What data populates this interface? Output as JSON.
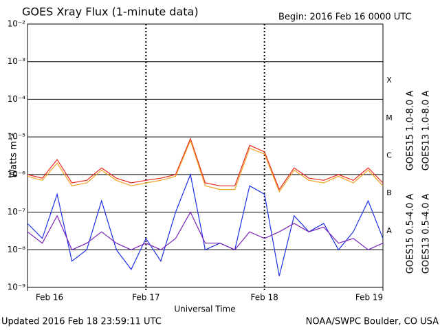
{
  "chart_data": {
    "type": "line",
    "title": "GOES Xray Flux (1-minute data)",
    "subtitle": "Begin:  2016 Feb 16 0000 UTC",
    "y_label": "Watts m⁻²",
    "x_label": "Universal Time",
    "footer_left": "Updated 2016 Feb 18 23:59:11 UTC",
    "footer_right": "NOAA/SWPC Boulder, CO USA",
    "log_y": true,
    "grid": true,
    "xlim": [
      0,
      3
    ],
    "xticks": [
      {
        "value": 0,
        "label": "Feb 16"
      },
      {
        "value": 1,
        "label": "Feb 17"
      },
      {
        "value": 2,
        "label": "Feb 18"
      },
      {
        "value": 3,
        "label": "Feb 19"
      }
    ],
    "ylim": [
      1e-09,
      0.01
    ],
    "yticks": [
      {
        "value": 0.01,
        "label": "10⁻²"
      },
      {
        "value": 0.001,
        "label": "10⁻³"
      },
      {
        "value": 0.0001,
        "label": "10⁻⁴"
      },
      {
        "value": 1e-05,
        "label": "10⁻⁵"
      },
      {
        "value": 1e-06,
        "label": "10⁻⁶"
      },
      {
        "value": 1e-07,
        "label": "10⁻⁷"
      },
      {
        "value": 1e-08,
        "label": "10⁻⁸"
      },
      {
        "value": 1e-09,
        "label": "10⁻⁹"
      }
    ],
    "flare_classes": [
      {
        "label": "X",
        "value": 0.0001
      },
      {
        "label": "M",
        "value": 1e-05
      },
      {
        "label": "C",
        "value": 1e-06
      },
      {
        "label": "B",
        "value": 1e-07
      },
      {
        "label": "A",
        "value": 1e-08
      }
    ],
    "x": [
      0,
      0.125,
      0.25,
      0.375,
      0.5,
      0.625,
      0.75,
      0.875,
      1,
      1.125,
      1.25,
      1.375,
      1.5,
      1.625,
      1.75,
      1.875,
      2,
      2.125,
      2.25,
      2.375,
      2.5,
      2.625,
      2.75,
      2.875,
      3
    ],
    "series": [
      {
        "name": "GOES15 1.0-8.0 A",
        "color": "#e8261c",
        "values": [
          1e-06,
          8e-07,
          2.5e-06,
          6e-07,
          7e-07,
          1.5e-06,
          8e-07,
          6e-07,
          7e-07,
          8e-07,
          1e-06,
          9e-06,
          6e-07,
          5e-07,
          5e-07,
          6e-06,
          4e-06,
          4e-07,
          1.5e-06,
          8e-07,
          7e-07,
          1e-06,
          7e-07,
          1.5e-06,
          6e-07
        ]
      },
      {
        "name": "GOES13 1.0-8.0 A",
        "color": "#f0a020",
        "values": [
          9e-07,
          7e-07,
          2e-06,
          5e-07,
          6e-07,
          1.3e-06,
          7e-07,
          5e-07,
          6e-07,
          7e-07,
          9e-07,
          8e-06,
          5e-07,
          4e-07,
          4e-07,
          5e-06,
          3.5e-06,
          3.5e-07,
          1.3e-06,
          7e-07,
          6e-07,
          9e-07,
          6e-07,
          1.3e-06,
          5e-07
        ]
      },
      {
        "name": "GOES15 0.5-4.0 A",
        "color": "#1c2ee8",
        "values": [
          5e-08,
          2e-08,
          3e-07,
          5e-09,
          1e-08,
          2e-07,
          1e-08,
          3e-09,
          2e-08,
          5e-09,
          1e-07,
          1e-06,
          1e-08,
          1.5e-08,
          1e-08,
          5e-07,
          3e-07,
          2e-09,
          8e-08,
          3e-08,
          5e-08,
          1e-08,
          3e-08,
          2e-07,
          2e-08
        ]
      },
      {
        "name": "GOES13 0.5-4.0 A",
        "color": "#7a22b8",
        "values": [
          3e-08,
          1.5e-08,
          8e-08,
          1e-08,
          1.5e-08,
          3e-08,
          1.5e-08,
          1e-08,
          1.5e-08,
          1e-08,
          2e-08,
          1e-07,
          1.5e-08,
          1.5e-08,
          1e-08,
          3e-08,
          2e-08,
          3e-08,
          5e-08,
          3e-08,
          4e-08,
          1.5e-08,
          2e-08,
          1e-08,
          1.5e-08
        ]
      }
    ]
  }
}
